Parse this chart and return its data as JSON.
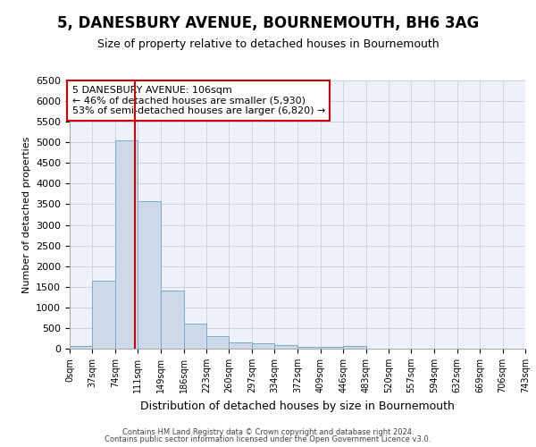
{
  "title": "5, DANESBURY AVENUE, BOURNEMOUTH, BH6 3AG",
  "subtitle": "Size of property relative to detached houses in Bournemouth",
  "xlabel": "Distribution of detached houses by size in Bournemouth",
  "ylabel": "Number of detached properties",
  "bin_edges": [
    0,
    37,
    74,
    111,
    149,
    186,
    223,
    260,
    297,
    334,
    372,
    409,
    446,
    483,
    520,
    557,
    594,
    632,
    669,
    706,
    743
  ],
  "bar_heights": [
    75,
    1650,
    5050,
    3580,
    1400,
    610,
    300,
    155,
    130,
    95,
    50,
    45,
    70,
    0,
    0,
    0,
    0,
    0,
    0,
    0
  ],
  "bar_color": "#ccd9e8",
  "bar_edge_color": "#7aaac8",
  "vline_x": 106,
  "vline_color": "#cc0000",
  "annotation_text": "5 DANESBURY AVENUE: 106sqm\n← 46% of detached houses are smaller (5,930)\n53% of semi-detached houses are larger (6,820) →",
  "annotation_box_color": "#ffffff",
  "annotation_box_edge_color": "#cc0000",
  "ylim": [
    0,
    6500
  ],
  "yticks": [
    0,
    500,
    1000,
    1500,
    2000,
    2500,
    3000,
    3500,
    4000,
    4500,
    5000,
    5500,
    6000,
    6500
  ],
  "tick_labels": [
    "0sqm",
    "37sqm",
    "74sqm",
    "111sqm",
    "149sqm",
    "186sqm",
    "223sqm",
    "260sqm",
    "297sqm",
    "334sqm",
    "372sqm",
    "409sqm",
    "446sqm",
    "483sqm",
    "520sqm",
    "557sqm",
    "594sqm",
    "632sqm",
    "669sqm",
    "706sqm",
    "743sqm"
  ],
  "footer_line1": "Contains HM Land Registry data © Crown copyright and database right 2024.",
  "footer_line2": "Contains public sector information licensed under the Open Government Licence v3.0.",
  "grid_color": "#c8d4e4",
  "bg_color": "#eef2f8",
  "title_fontsize": 12,
  "subtitle_fontsize": 9,
  "xlabel_fontsize": 9,
  "ylabel_fontsize": 8,
  "annot_fontsize": 8,
  "tick_fontsize": 7,
  "ytick_fontsize": 8,
  "footer_fontsize": 6
}
